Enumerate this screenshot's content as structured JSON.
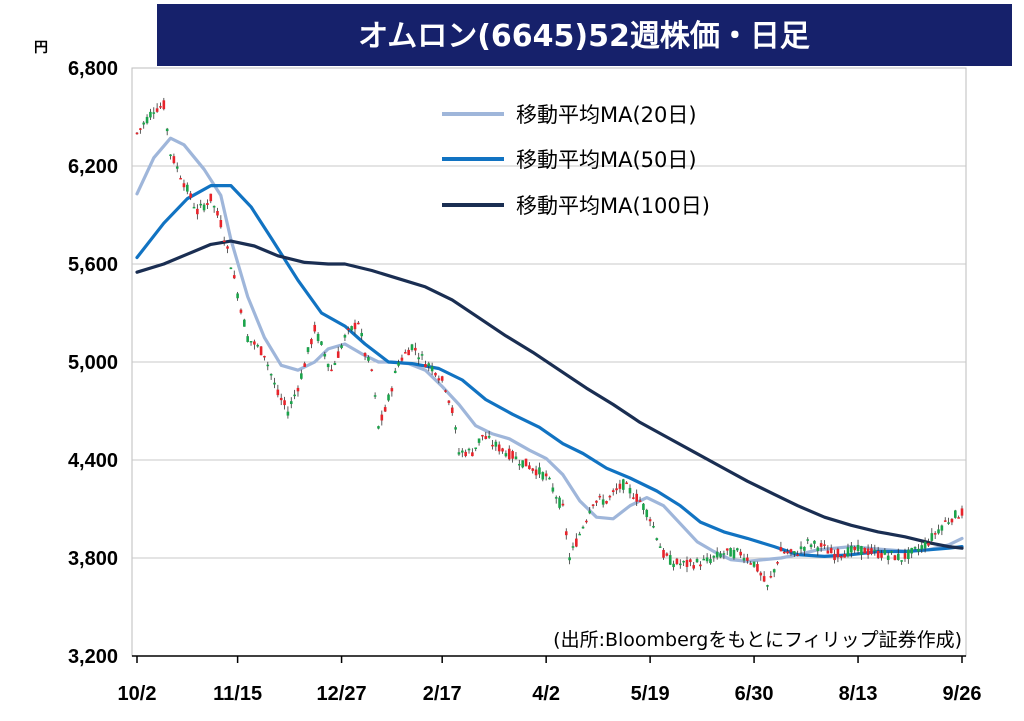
{
  "colors": {
    "title_bg": "#16216B",
    "up": "#E8232A",
    "down": "#1BA44B",
    "ma20": "#9FB6DA",
    "ma50": "#1173C2",
    "ma100": "#1A2E52",
    "grid": "#C8C8C8"
  },
  "chart_data": {
    "type": "candlestick",
    "title": "オムロン(6645)52週株価・日足",
    "unit_label": "円",
    "source": "(出所:Bloombergをもとにフィリップ証券作成)",
    "ylim": [
      3200,
      6800
    ],
    "yticks": [
      "6,800",
      "6,200",
      "5,600",
      "5,000",
      "4,400",
      "3,800",
      "3,200"
    ],
    "ytick_values": [
      6800,
      6200,
      5600,
      5000,
      4400,
      3800,
      3200
    ],
    "xlim": [
      0,
      246
    ],
    "xticks": [
      "10/2",
      "11/15",
      "12/27",
      "2/17",
      "4/2",
      "5/19",
      "6/30",
      "8/13",
      "9/26"
    ],
    "xtick_values": [
      0,
      30,
      61,
      91,
      122,
      153,
      184,
      215,
      246
    ],
    "legend_position": "top-right",
    "series": [
      {
        "name": "移動平均MA(20日)",
        "color": "#9FB6DA",
        "points": [
          [
            0,
            6030
          ],
          [
            5,
            6250
          ],
          [
            10,
            6370
          ],
          [
            14,
            6330
          ],
          [
            20,
            6180
          ],
          [
            25,
            6020
          ],
          [
            28,
            5750
          ],
          [
            33,
            5400
          ],
          [
            38,
            5150
          ],
          [
            43,
            4980
          ],
          [
            48,
            4950
          ],
          [
            53,
            5000
          ],
          [
            57,
            5080
          ],
          [
            62,
            5110
          ],
          [
            67,
            5050
          ],
          [
            72,
            5000
          ],
          [
            76,
            5000
          ],
          [
            81,
            4990
          ],
          [
            86,
            4950
          ],
          [
            91,
            4850
          ],
          [
            96,
            4740
          ],
          [
            101,
            4610
          ],
          [
            106,
            4560
          ],
          [
            111,
            4530
          ],
          [
            117,
            4460
          ],
          [
            122,
            4410
          ],
          [
            127,
            4310
          ],
          [
            132,
            4150
          ],
          [
            137,
            4050
          ],
          [
            142,
            4040
          ],
          [
            147,
            4120
          ],
          [
            152,
            4170
          ],
          [
            157,
            4120
          ],
          [
            162,
            4010
          ],
          [
            167,
            3900
          ],
          [
            172,
            3840
          ],
          [
            177,
            3790
          ],
          [
            182,
            3780
          ],
          [
            187,
            3790
          ],
          [
            192,
            3800
          ],
          [
            197,
            3820
          ],
          [
            203,
            3850
          ],
          [
            208,
            3860
          ],
          [
            213,
            3870
          ],
          [
            218,
            3860
          ],
          [
            224,
            3850
          ],
          [
            230,
            3840
          ],
          [
            236,
            3850
          ],
          [
            242,
            3880
          ],
          [
            246,
            3920
          ]
        ]
      },
      {
        "name": "移動平均MA(50日)",
        "color": "#1173C2",
        "points": [
          [
            0,
            5640
          ],
          [
            8,
            5850
          ],
          [
            15,
            6000
          ],
          [
            22,
            6080
          ],
          [
            28,
            6080
          ],
          [
            34,
            5950
          ],
          [
            40,
            5760
          ],
          [
            48,
            5500
          ],
          [
            55,
            5300
          ],
          [
            62,
            5220
          ],
          [
            68,
            5110
          ],
          [
            75,
            5000
          ],
          [
            82,
            4990
          ],
          [
            90,
            4960
          ],
          [
            97,
            4890
          ],
          [
            104,
            4770
          ],
          [
            112,
            4680
          ],
          [
            120,
            4600
          ],
          [
            127,
            4500
          ],
          [
            133,
            4440
          ],
          [
            140,
            4350
          ],
          [
            147,
            4290
          ],
          [
            155,
            4210
          ],
          [
            162,
            4120
          ],
          [
            168,
            4020
          ],
          [
            175,
            3960
          ],
          [
            182,
            3920
          ],
          [
            190,
            3870
          ],
          [
            197,
            3820
          ],
          [
            205,
            3810
          ],
          [
            213,
            3820
          ],
          [
            221,
            3840
          ],
          [
            229,
            3840
          ],
          [
            236,
            3850
          ],
          [
            242,
            3860
          ],
          [
            246,
            3870
          ]
        ]
      },
      {
        "name": "移動平均MA(100日)",
        "color": "#1A2E52",
        "points": [
          [
            0,
            5550
          ],
          [
            8,
            5600
          ],
          [
            15,
            5660
          ],
          [
            22,
            5720
          ],
          [
            28,
            5740
          ],
          [
            35,
            5710
          ],
          [
            42,
            5650
          ],
          [
            50,
            5610
          ],
          [
            57,
            5600
          ],
          [
            62,
            5600
          ],
          [
            70,
            5560
          ],
          [
            78,
            5510
          ],
          [
            86,
            5460
          ],
          [
            94,
            5380
          ],
          [
            102,
            5270
          ],
          [
            110,
            5160
          ],
          [
            118,
            5060
          ],
          [
            126,
            4950
          ],
          [
            134,
            4840
          ],
          [
            142,
            4740
          ],
          [
            150,
            4630
          ],
          [
            158,
            4540
          ],
          [
            166,
            4450
          ],
          [
            174,
            4360
          ],
          [
            182,
            4270
          ],
          [
            190,
            4190
          ],
          [
            197,
            4120
          ],
          [
            205,
            4050
          ],
          [
            213,
            4000
          ],
          [
            221,
            3960
          ],
          [
            229,
            3930
          ],
          [
            237,
            3890
          ],
          [
            242,
            3870
          ],
          [
            246,
            3860
          ]
        ]
      }
    ],
    "candles": {
      "trend": [
        [
          0,
          6400
        ],
        [
          5,
          6550
        ],
        [
          8,
          6570
        ],
        [
          10,
          6280
        ],
        [
          14,
          6100
        ],
        [
          18,
          5920
        ],
        [
          22,
          6000
        ],
        [
          25,
          5850
        ],
        [
          28,
          5600
        ],
        [
          33,
          5150
        ],
        [
          38,
          5050
        ],
        [
          42,
          4800
        ],
        [
          45,
          4700
        ],
        [
          48,
          4850
        ],
        [
          53,
          5200
        ],
        [
          55,
          5100
        ],
        [
          58,
          4950
        ],
        [
          62,
          5150
        ],
        [
          66,
          5250
        ],
        [
          68,
          5050
        ],
        [
          70,
          4950
        ],
        [
          72,
          4600
        ],
        [
          74,
          4700
        ],
        [
          78,
          5000
        ],
        [
          82,
          5100
        ],
        [
          86,
          5000
        ],
        [
          89,
          4950
        ],
        [
          92,
          4850
        ],
        [
          94,
          4700
        ],
        [
          96,
          4450
        ],
        [
          100,
          4450
        ],
        [
          103,
          4550
        ],
        [
          106,
          4500
        ],
        [
          110,
          4450
        ],
        [
          114,
          4400
        ],
        [
          118,
          4350
        ],
        [
          122,
          4300
        ],
        [
          127,
          4100
        ],
        [
          129,
          3800
        ],
        [
          132,
          3950
        ],
        [
          136,
          4150
        ],
        [
          140,
          4150
        ],
        [
          145,
          4250
        ],
        [
          150,
          4150
        ],
        [
          153,
          4050
        ],
        [
          157,
          3820
        ],
        [
          160,
          3770
        ],
        [
          164,
          3760
        ],
        [
          167,
          3770
        ],
        [
          170,
          3780
        ],
        [
          175,
          3830
        ],
        [
          180,
          3830
        ],
        [
          184,
          3770
        ],
        [
          188,
          3620
        ],
        [
          192,
          3840
        ],
        [
          196,
          3820
        ],
        [
          200,
          3890
        ],
        [
          204,
          3870
        ],
        [
          208,
          3820
        ],
        [
          212,
          3840
        ],
        [
          216,
          3850
        ],
        [
          220,
          3830
        ],
        [
          224,
          3820
        ],
        [
          228,
          3800
        ],
        [
          232,
          3840
        ],
        [
          236,
          3900
        ],
        [
          240,
          4000
        ],
        [
          243,
          4050
        ],
        [
          246,
          4080
        ]
      ],
      "amplitude": 55,
      "body_width": 2.6
    }
  }
}
